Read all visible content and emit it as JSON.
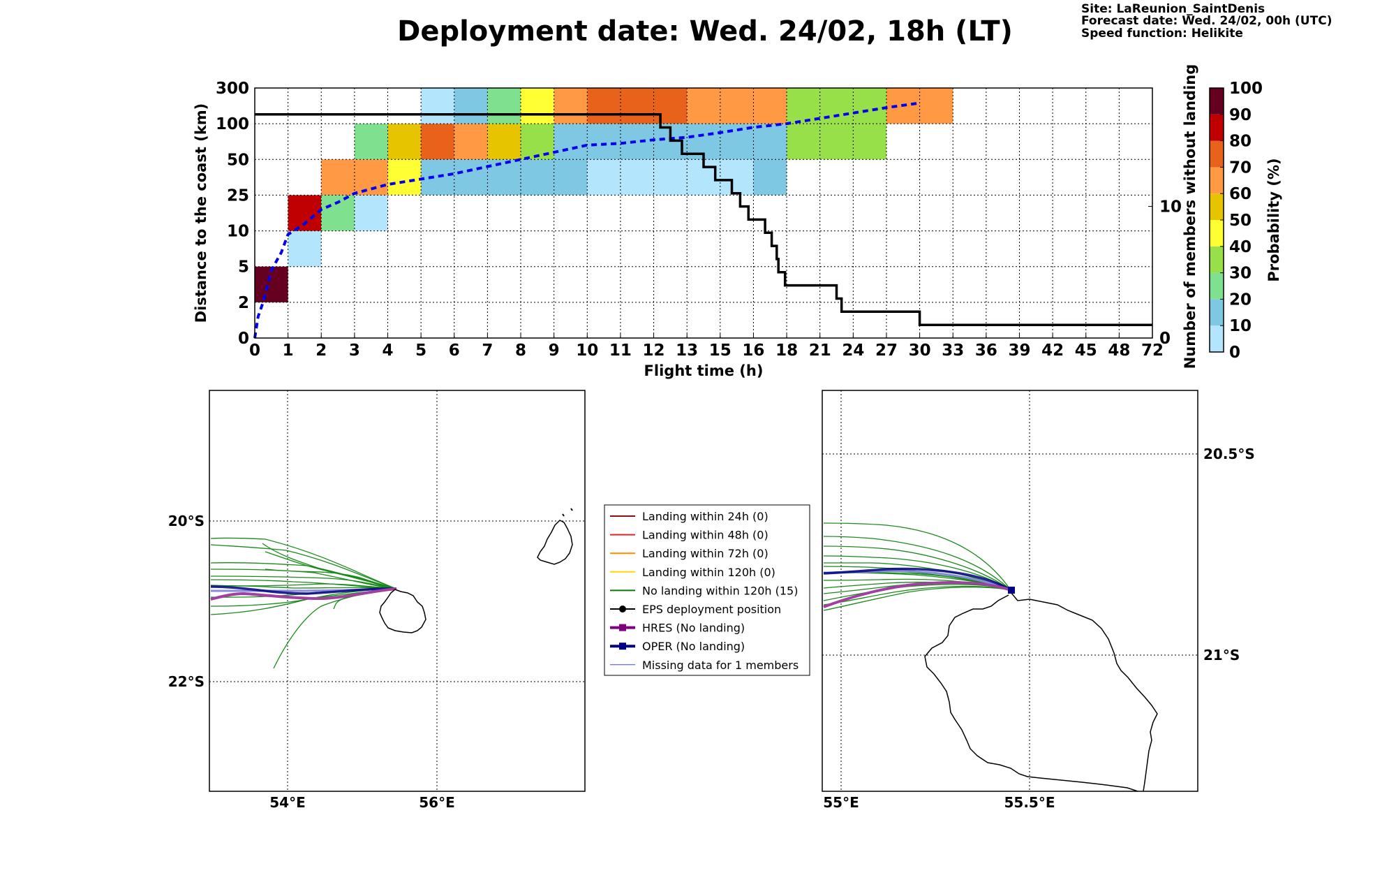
{
  "header": {
    "title": "Deployment date: Wed. 24/02, 18h (LT)",
    "site": "Site: LaReunion_SaintDenis",
    "forecast": "Forecast date: Wed. 24/02, 00h (UTC)",
    "speed": "Speed function: Helikite"
  },
  "chart_data": [
    {
      "type": "heatmap",
      "xlabel": "Flight time (h)",
      "ylabel": "Distance to the coast (km)",
      "ylabel_right": "Number of members without landing",
      "colorbar_label": "Probability (%)",
      "x_ticks": [
        "0",
        "1",
        "2",
        "3",
        "4",
        "5",
        "6",
        "7",
        "8",
        "9",
        "10",
        "11",
        "12",
        "13",
        "15",
        "16",
        "18",
        "21",
        "24",
        "27",
        "30",
        "33",
        "36",
        "39",
        "42",
        "45",
        "48",
        "72"
      ],
      "y_ticks": [
        "0",
        "2",
        "5",
        "10",
        "25",
        "50",
        "100",
        "300"
      ],
      "y2_ticks": [
        "0",
        "10"
      ],
      "y2_range": [
        0,
        19
      ],
      "colorbar_ticks": [
        "0",
        "10",
        "20",
        "30",
        "40",
        "50",
        "60",
        "70",
        "80",
        "90",
        "100"
      ],
      "colorbar_colors": [
        "#b3e5fc",
        "#7ec8e3",
        "#7fe08f",
        "#98e04a",
        "#ffff33",
        "#e6c400",
        "#ff9944",
        "#e8621c",
        "#c00000",
        "#660020"
      ],
      "cells": [
        {
          "xi": 0,
          "yi": 1,
          "prob": 95
        },
        {
          "xi": 1,
          "yi": 2,
          "prob": 5
        },
        {
          "xi": 1,
          "yi": 3,
          "prob": 85
        },
        {
          "xi": 2,
          "yi": 3,
          "prob": 25
        },
        {
          "xi": 2,
          "yi": 4,
          "prob": 65
        },
        {
          "xi": 3,
          "yi": 3,
          "prob": 5
        },
        {
          "xi": 3,
          "yi": 4,
          "prob": 65
        },
        {
          "xi": 3,
          "yi": 5,
          "prob": 25
        },
        {
          "xi": 4,
          "yi": 4,
          "prob": 45
        },
        {
          "xi": 4,
          "yi": 5,
          "prob": 55
        },
        {
          "xi": 5,
          "yi": 4,
          "prob": 15
        },
        {
          "xi": 5,
          "yi": 5,
          "prob": 75
        },
        {
          "xi": 5,
          "yi": 6,
          "prob": 5
        },
        {
          "xi": 6,
          "yi": 4,
          "prob": 15
        },
        {
          "xi": 6,
          "yi": 5,
          "prob": 65
        },
        {
          "xi": 6,
          "yi": 6,
          "prob": 15
        },
        {
          "xi": 7,
          "yi": 4,
          "prob": 15
        },
        {
          "xi": 7,
          "yi": 5,
          "prob": 55
        },
        {
          "xi": 7,
          "yi": 6,
          "prob": 25
        },
        {
          "xi": 8,
          "yi": 4,
          "prob": 15
        },
        {
          "xi": 8,
          "yi": 5,
          "prob": 35
        },
        {
          "xi": 8,
          "yi": 6,
          "prob": 45
        },
        {
          "xi": 9,
          "yi": 4,
          "prob": 15
        },
        {
          "xi": 9,
          "yi": 5,
          "prob": 15
        },
        {
          "xi": 9,
          "yi": 6,
          "prob": 65
        },
        {
          "xi": 10,
          "yi": 4,
          "prob": 5
        },
        {
          "xi": 10,
          "yi": 5,
          "prob": 15
        },
        {
          "xi": 10,
          "yi": 6,
          "prob": 75
        },
        {
          "xi": 11,
          "yi": 4,
          "prob": 5
        },
        {
          "xi": 11,
          "yi": 5,
          "prob": 15
        },
        {
          "xi": 11,
          "yi": 6,
          "prob": 75
        },
        {
          "xi": 12,
          "yi": 4,
          "prob": 5
        },
        {
          "xi": 12,
          "yi": 5,
          "prob": 15
        },
        {
          "xi": 12,
          "yi": 6,
          "prob": 75
        },
        {
          "xi": 13,
          "yi": 4,
          "prob": 5
        },
        {
          "xi": 13,
          "yi": 5,
          "prob": 15
        },
        {
          "xi": 13,
          "yi": 6,
          "prob": 65
        },
        {
          "xi": 14,
          "yi": 4,
          "prob": 5
        },
        {
          "xi": 14,
          "yi": 5,
          "prob": 15
        },
        {
          "xi": 14,
          "yi": 6,
          "prob": 65
        },
        {
          "xi": 15,
          "yi": 4,
          "prob": 15
        },
        {
          "xi": 15,
          "yi": 5,
          "prob": 15
        },
        {
          "xi": 15,
          "yi": 6,
          "prob": 65
        },
        {
          "xi": 16,
          "yi": 5,
          "prob": 35
        },
        {
          "xi": 16,
          "yi": 6,
          "prob": 35
        },
        {
          "xi": 17,
          "yi": 5,
          "prob": 35
        },
        {
          "xi": 17,
          "yi": 6,
          "prob": 35
        },
        {
          "xi": 18,
          "yi": 5,
          "prob": 35
        },
        {
          "xi": 18,
          "yi": 6,
          "prob": 35
        },
        {
          "xi": 19,
          "yi": 6,
          "prob": 65
        },
        {
          "xi": 20,
          "yi": 6,
          "prob": 65
        }
      ],
      "series": [
        {
          "type": "line",
          "style": "dashed",
          "color": "#0000ee",
          "axis": "distance",
          "points": [
            [
              0,
              0.0
            ],
            [
              0.1,
              0.6
            ],
            [
              0.25,
              1.0
            ],
            [
              0.5,
              1.9
            ],
            [
              0.8,
              2.4
            ],
            [
              1.0,
              2.9
            ],
            [
              1.5,
              3.2
            ],
            [
              2.0,
              3.6
            ],
            [
              2.5,
              3.8
            ],
            [
              3.0,
              4.05
            ],
            [
              4.0,
              4.3
            ],
            [
              5.0,
              4.45
            ],
            [
              6.0,
              4.6
            ],
            [
              7.0,
              4.8
            ],
            [
              8.0,
              5.0
            ],
            [
              9.0,
              5.2
            ],
            [
              10.0,
              5.4
            ],
            [
              11.0,
              5.45
            ],
            [
              12.0,
              5.55
            ],
            [
              13.0,
              5.62
            ],
            [
              14.0,
              5.75
            ],
            [
              15.0,
              5.9
            ],
            [
              16.0,
              6.0
            ],
            [
              17.0,
              6.15
            ],
            [
              18.0,
              6.3
            ],
            [
              19.0,
              6.45
            ],
            [
              20.0,
              6.58
            ]
          ]
        },
        {
          "type": "line",
          "style": "step",
          "color": "#000000",
          "axis": "members",
          "points": [
            [
              0,
              17.0
            ],
            [
              12.2,
              17.0
            ],
            [
              12.2,
              16.0
            ],
            [
              12.5,
              16.0
            ],
            [
              12.5,
              15.0
            ],
            [
              12.85,
              15.0
            ],
            [
              12.85,
              14.0
            ],
            [
              13.5,
              14.0
            ],
            [
              13.5,
              13.0
            ],
            [
              13.85,
              13.0
            ],
            [
              13.85,
              12.0
            ],
            [
              14.35,
              12.0
            ],
            [
              14.35,
              11.0
            ],
            [
              14.6,
              11.0
            ],
            [
              14.6,
              10.0
            ],
            [
              14.85,
              10.0
            ],
            [
              14.85,
              9.0
            ],
            [
              15.35,
              9.0
            ],
            [
              15.35,
              8.0
            ],
            [
              15.55,
              8.0
            ],
            [
              15.55,
              7.0
            ],
            [
              15.7,
              7.0
            ],
            [
              15.7,
              6.0
            ],
            [
              15.75,
              6.0
            ],
            [
              15.75,
              5.0
            ],
            [
              15.95,
              5.0
            ],
            [
              15.95,
              4.0
            ],
            [
              17.5,
              4.0
            ],
            [
              17.5,
              3.0
            ],
            [
              17.65,
              3.0
            ],
            [
              17.65,
              2.0
            ],
            [
              20.0,
              2.0
            ],
            [
              20.0,
              1.0
            ],
            [
              27.0,
              1.0
            ]
          ]
        }
      ]
    }
  ],
  "legend": {
    "items": [
      {
        "label": "Landing within 24h (0)",
        "color": "#8b1010",
        "marker": "none",
        "width": 2
      },
      {
        "label": "Landing within 48h (0)",
        "color": "#ee2020",
        "marker": "none",
        "width": 2
      },
      {
        "label": "Landing within 72h (0)",
        "color": "#ff8c00",
        "marker": "none",
        "width": 2
      },
      {
        "label": "Landing within 120h (0)",
        "color": "#ffd700",
        "marker": "none",
        "width": 2
      },
      {
        "label": "No landing within 120h (15)",
        "color": "#0a7a0a",
        "marker": "none",
        "width": 2
      },
      {
        "label": "EPS deployment position",
        "color": "#000000",
        "marker": "circle",
        "width": 2
      },
      {
        "label": "HRES (No landing)",
        "color": "#800080",
        "marker": "square",
        "width": 4
      },
      {
        "label": "OPER (No landing)",
        "color": "#000080",
        "marker": "square",
        "width": 4
      },
      {
        "label": "Missing data for 1 members",
        "color": "#4444ff",
        "marker": "none",
        "width": 1
      }
    ]
  },
  "map_left": {
    "x_ticks": [
      "54°E",
      "56°E"
    ],
    "y_ticks": [
      "20°S",
      "22°S"
    ]
  },
  "map_right": {
    "x_ticks": [
      "55°E",
      "55.5°E"
    ],
    "y_ticks": [
      "20.5°S",
      "21°S"
    ]
  }
}
